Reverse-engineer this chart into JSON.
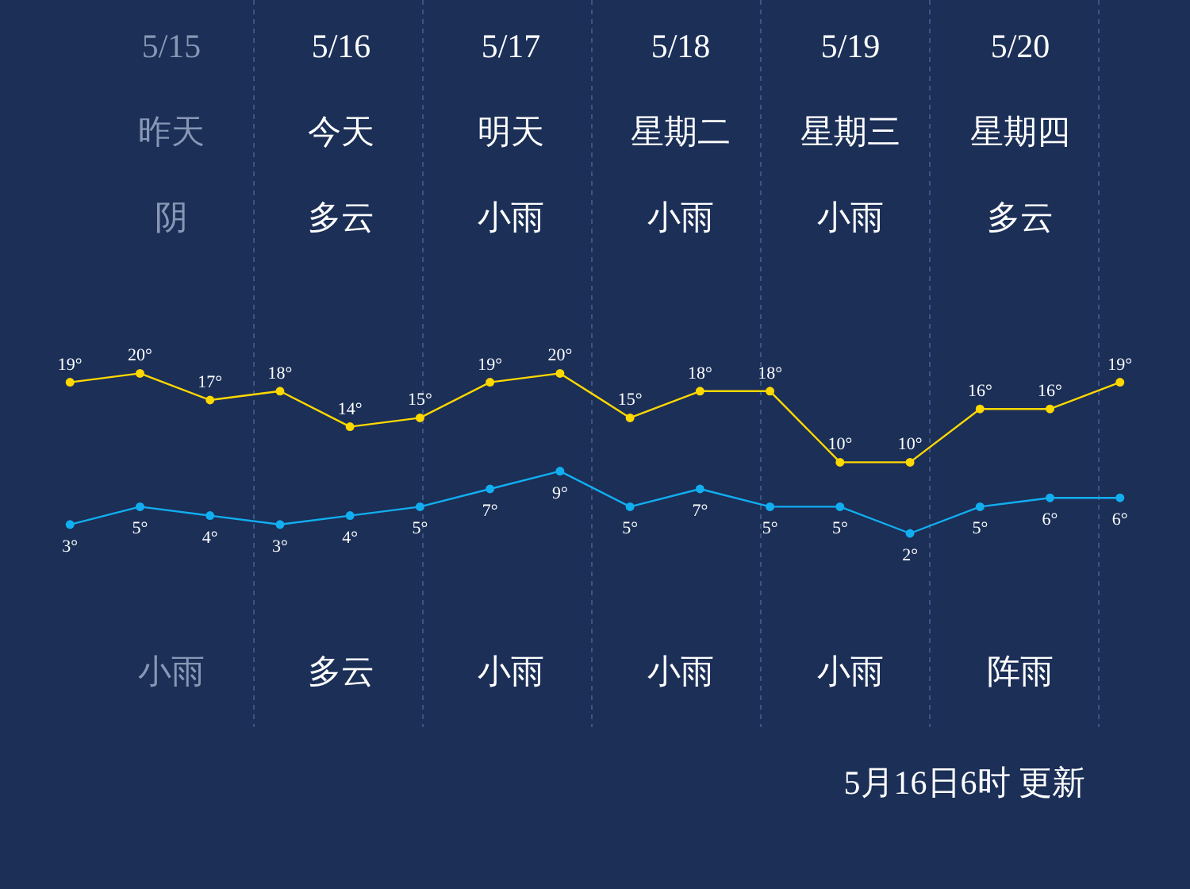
{
  "chart_data": {
    "type": "line",
    "categories": [
      null,
      null,
      null,
      null,
      null,
      null,
      null,
      null,
      null,
      null,
      null,
      null,
      null,
      null,
      null,
      null
    ],
    "series": [
      {
        "color": "#ffd800",
        "values": [
          19,
          20,
          17,
          18,
          14,
          15,
          19,
          20,
          15,
          18,
          18,
          10,
          10,
          16,
          16,
          19
        ],
        "value_labels": [
          "19°",
          "20°",
          "17°",
          "18°",
          "14°",
          "15°",
          "19°",
          "20°",
          "15°",
          "18°",
          "18°",
          "10°",
          "10°",
          "16°",
          "16°",
          "19°"
        ]
      },
      {
        "color": "#12aef0",
        "values": [
          3,
          5,
          4,
          3,
          4,
          5,
          7,
          9,
          5,
          7,
          5,
          5,
          2,
          5,
          6,
          6
        ],
        "value_labels": [
          "3°",
          "5°",
          "4°",
          "3°",
          "4°",
          "5°",
          "7°",
          "9°",
          "5°",
          "7°",
          "5°",
          "5°",
          "2°",
          "5°",
          "6°",
          "6°"
        ]
      }
    ],
    "ylim": [
      -38,
      62
    ],
    "tick_labels": false,
    "marker": "circle",
    "line_style": "solid",
    "annotations": [
      "5/15",
      "5/16",
      "5/17",
      "5/18",
      "5/19",
      "5/20",
      "昨天",
      "今天",
      "明天",
      "星期二",
      "星期三",
      "星期四",
      "阴",
      "多云",
      "小雨",
      "小雨",
      "小雨",
      "多云",
      "小雨",
      "多云",
      "小雨",
      "小雨",
      "小雨",
      "阵雨",
      "5月16日6时 更新"
    ]
  }
}
